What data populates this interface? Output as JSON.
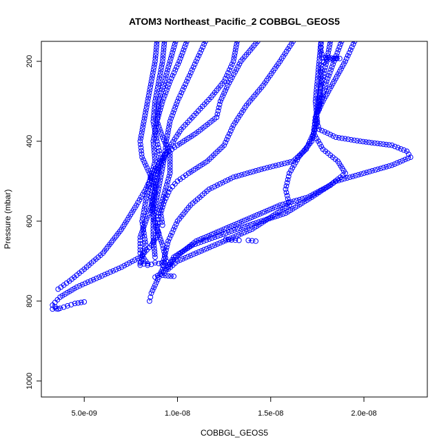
{
  "chart_data": {
    "type": "scatter",
    "title": "ATOM3 Northeast_Pacific_2 COBBGL_GEOS5",
    "xlabel": "COBBGL_GEOS5",
    "ylabel": "Pressure (mbar)",
    "xlim": [
      2.7e-09,
      2.34e-08
    ],
    "ylim": [
      1040,
      150
    ],
    "y_reversed": true,
    "grid": false,
    "legend": "none",
    "marker": "open-circle",
    "line": "dashed",
    "color": "#0000ff",
    "x_ticks": [
      {
        "value": 5e-09,
        "label": "5.0e-09"
      },
      {
        "value": 1e-08,
        "label": "1.0e-08"
      },
      {
        "value": 1.5e-08,
        "label": "1.5e-08"
      },
      {
        "value": 2e-08,
        "label": "2.0e-08"
      }
    ],
    "y_ticks": [
      {
        "value": 200,
        "label": "200"
      },
      {
        "value": 400,
        "label": "400"
      },
      {
        "value": 600,
        "label": "600"
      },
      {
        "value": 800,
        "label": "800"
      },
      {
        "value": 1000,
        "label": "1000"
      }
    ],
    "series": [
      {
        "x": [
          8.9e-09,
          8.8e-09,
          8.6e-09,
          8.4e-09,
          8.2e-09,
          8e-09,
          8.1e-09,
          8.5e-09,
          8.8e-09,
          8.6e-09,
          8.3e-09,
          8e-09,
          8e-09,
          8.3e-09,
          8.4e-09
        ],
        "y": [
          150,
          200,
          250,
          300,
          350,
          400,
          440,
          480,
          520,
          560,
          600,
          640,
          680,
          700,
          710
        ]
      },
      {
        "x": [
          9.3e-09,
          9.2e-09,
          9e-09,
          8.8e-09,
          8.7e-09,
          8.9e-09,
          9.1e-09,
          8.8e-09,
          8.6e-09,
          8.7e-09,
          9e-09,
          8.6e-09,
          8e-09,
          7e-09,
          5.8e-09,
          4.6e-09,
          3.7e-09,
          3.3e-09,
          3.6e-09
        ],
        "y": [
          150,
          200,
          250,
          300,
          350,
          400,
          440,
          490,
          540,
          590,
          630,
          660,
          690,
          715,
          740,
          765,
          790,
          810,
          820
        ]
      },
      {
        "x": [
          9.9e-09,
          9.6e-09,
          9.3e-09,
          9e-09,
          8.9e-09,
          9.2e-09,
          9.6e-09,
          9.6e-09,
          9.3e-09,
          9e-09,
          8.9e-09,
          9.2e-09,
          9.4e-09,
          9e-09,
          8.6e-09,
          8.5e-09
        ],
        "y": [
          150,
          200,
          250,
          300,
          350,
          390,
          430,
          480,
          530,
          580,
          620,
          660,
          700,
          740,
          780,
          800
        ]
      },
      {
        "x": [
          1.05e-08,
          1.01e-08,
          9.6e-09,
          9.2e-09,
          8.9e-09,
          8.7e-09,
          8.8e-09,
          8.5e-09,
          8.3e-09,
          8.1e-09,
          8.3e-09,
          8e-09
        ],
        "y": [
          150,
          200,
          250,
          300,
          350,
          400,
          450,
          500,
          550,
          600,
          660,
          710
        ]
      },
      {
        "x": [
          1.15e-08,
          1.1e-08,
          1.05e-08,
          1e-08,
          9.6e-09,
          9.4e-09,
          9.3e-09,
          9.1e-09,
          8.9e-09,
          8.7e-09,
          8.7e-09,
          8.8e-09
        ],
        "y": [
          150,
          200,
          250,
          300,
          350,
          400,
          440,
          490,
          540,
          590,
          640,
          690
        ]
      },
      {
        "x": [
          1.43e-08,
          1.34e-08,
          1.27e-08,
          1.23e-08,
          1.21e-08,
          1.1e-08,
          1e-08,
          9.4e-09,
          9.1e-09,
          8.7e-09,
          8.3e-09,
          7.8e-09,
          7e-09,
          6e-09,
          5e-09,
          4.2e-09,
          3.6e-09
        ],
        "y": [
          150,
          200,
          260,
          300,
          340,
          380,
          410,
          430,
          450,
          480,
          520,
          560,
          620,
          680,
          720,
          750,
          770
        ]
      },
      {
        "x": [
          1.62e-08,
          1.55e-08,
          1.46e-08,
          1.37e-08,
          1.3e-08,
          1.25e-08,
          1.16e-08,
          1.06e-08,
          1e-08,
          9.6e-09,
          9.3e-09,
          9.1e-09,
          9.2e-09
        ],
        "y": [
          150,
          200,
          260,
          310,
          360,
          410,
          450,
          480,
          500,
          520,
          550,
          580,
          610
        ]
      },
      {
        "x": [
          1.32e-08,
          1.3e-08,
          1.25e-08,
          1.18e-08,
          1.1e-08,
          1.02e-08,
          9.5e-09,
          9e-09,
          8.8e-09,
          8.7e-09
        ],
        "y": [
          150,
          200,
          250,
          290,
          330,
          370,
          420,
          470,
          520,
          570
        ]
      },
      {
        "x": [
          1.82e-08,
          1.8e-08,
          1.77e-08,
          1.75e-08,
          1.73e-08,
          1.69e-08,
          1.62e-08,
          1.45e-08,
          1.3e-08,
          1.17e-08,
          1.07e-08,
          1e-08,
          9.5e-09,
          9.2e-09
        ],
        "y": [
          150,
          200,
          260,
          320,
          380,
          420,
          450,
          470,
          490,
          520,
          560,
          600,
          650,
          710
        ]
      },
      {
        "x": [
          1.88e-08,
          1.84e-08,
          1.8e-08,
          1.77e-08,
          1.74e-08,
          1.73e-08,
          1.78e-08,
          1.86e-08,
          1.9e-08,
          1.82e-08,
          1.7e-08,
          1.55e-08,
          1.4e-08,
          1.25e-08,
          1.1e-08,
          9.9e-09,
          9.4e-09
        ],
        "y": [
          150,
          200,
          250,
          300,
          340,
          380,
          420,
          450,
          480,
          510,
          540,
          560,
          590,
          620,
          650,
          690,
          720
        ]
      },
      {
        "x": [
          1.95e-08,
          1.9e-08,
          1.84e-08,
          1.78e-08,
          1.74e-08,
          1.76e-08,
          1.85e-08,
          1.98e-08,
          2.15e-08,
          2.23e-08,
          2.25e-08,
          2.15e-08,
          2e-08,
          1.85e-08,
          1.72e-08,
          1.58e-08,
          1.45e-08,
          1.32e-08,
          1.2e-08,
          1.08e-08,
          9.8e-09,
          9.4e-09
        ],
        "y": [
          150,
          200,
          250,
          300,
          340,
          370,
          390,
          400,
          410,
          425,
          440,
          460,
          480,
          500,
          540,
          580,
          600,
          620,
          640,
          660,
          690,
          720
        ]
      },
      {
        "x": [
          1.77e-08,
          1.76e-08,
          1.75e-08,
          1.74e-08,
          1.75e-08,
          1.72e-08,
          1.65e-08,
          1.6e-08,
          1.58e-08,
          1.6e-08,
          1.5e-08,
          1.4e-08,
          1.3e-08,
          1.2e-08,
          1.1e-08,
          1e-08,
          9.5e-09,
          8.8e-09
        ],
        "y": [
          150,
          200,
          250,
          300,
          350,
          400,
          440,
          480,
          520,
          560,
          590,
          620,
          640,
          660,
          680,
          700,
          720,
          740
        ]
      },
      {
        "x": [
          1.77e-08,
          1.77e-08,
          1.78e-08,
          1.87e-08,
          1.8e-08,
          1.77e-08,
          1.77e-08,
          1.76e-08,
          1.76e-08
        ],
        "y": [
          155,
          175,
          190,
          193,
          195,
          210,
          250,
          300,
          320
        ]
      },
      {
        "x": [
          1.26e-08,
          1.29e-08,
          1.33e-08
        ],
        "y": [
          645,
          647,
          648
        ]
      },
      {
        "x": [
          1.38e-08,
          1.4e-08,
          1.42e-08
        ],
        "y": [
          648,
          649,
          650
        ]
      },
      {
        "x": [
          8e-09,
          8.2e-09,
          8.4e-09,
          8.6e-09,
          8.8e-09,
          9e-09,
          9.3e-09
        ],
        "y": [
          705,
          707,
          706,
          708,
          704,
          706,
          703
        ]
      },
      {
        "x": [
          9.2e-09,
          9.5e-09,
          9.8e-09
        ],
        "y": [
          735,
          737,
          738
        ]
      },
      {
        "x": [
          3.3e-09,
          3.7e-09,
          4.1e-09,
          4.5e-09,
          5e-09
        ],
        "y": [
          820,
          818,
          812,
          806,
          802
        ]
      }
    ]
  }
}
